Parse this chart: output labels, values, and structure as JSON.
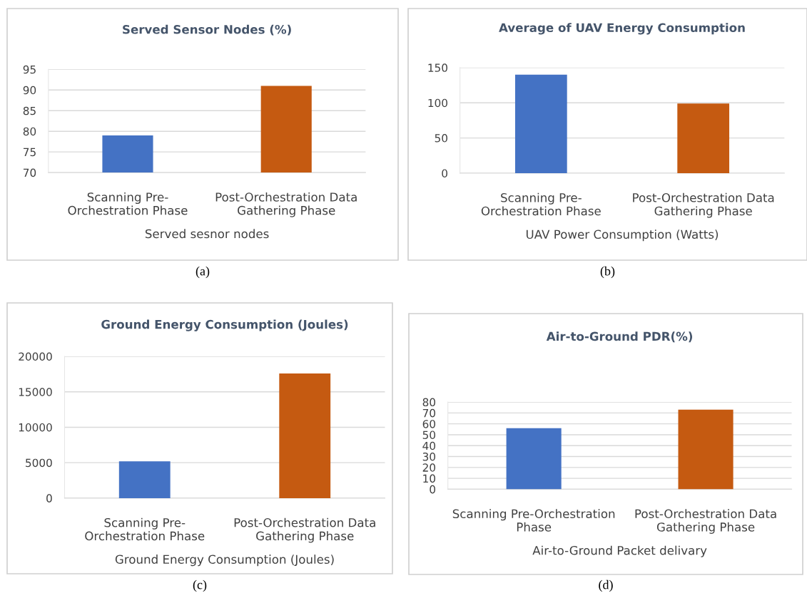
{
  "chart_data": [
    {
      "type": "bar",
      "title": "Served Sensor Nodes (%)",
      "xlabel": "Served sesnor nodes",
      "categories": [
        "Scanning Pre-\nOrchestration Phase",
        "Post-Orchestration Data\nGathering Phase"
      ],
      "values": [
        79,
        91
      ],
      "colors": [
        "#4472c4",
        "#c55a11"
      ],
      "ylim": [
        70,
        95
      ],
      "yticks": [
        70,
        75,
        80,
        85,
        90,
        95
      ],
      "grid": "y",
      "annotations": [
        "(a)"
      ]
    },
    {
      "type": "bar",
      "title": "Average of UAV Energy Consumption",
      "xlabel": "UAV Power Consumption (Watts)",
      "categories": [
        "Scanning Pre-\nOrchestration Phase",
        "Post-Orchestration Data\nGathering Phase"
      ],
      "values": [
        140,
        99
      ],
      "colors": [
        "#4472c4",
        "#c55a11"
      ],
      "ylim": [
        0,
        150
      ],
      "yticks": [
        0,
        50,
        100,
        150
      ],
      "grid": "y",
      "annotations": [
        "(b)"
      ]
    },
    {
      "type": "bar",
      "title": "Ground Energy Consumption (Joules)",
      "xlabel": "Ground Energy Consumption (Joules)",
      "categories": [
        "Scanning Pre-\nOrchestration Phase",
        "Post-Orchestration Data\nGathering Phase"
      ],
      "values": [
        5200,
        17600
      ],
      "colors": [
        "#4472c4",
        "#c55a11"
      ],
      "ylim": [
        0,
        20000
      ],
      "yticks": [
        0,
        5000,
        10000,
        15000,
        20000
      ],
      "grid": "y",
      "annotations": [
        "(c)"
      ]
    },
    {
      "type": "bar",
      "title": "Air-to-Ground PDR(%)",
      "xlabel": "Air-to-Ground Packet delivary",
      "categories": [
        "Scanning Pre-Orchestration\nPhase",
        "Post-Orchestration Data\nGathering Phase"
      ],
      "values": [
        56,
        73
      ],
      "colors": [
        "#4472c4",
        "#c55a11"
      ],
      "ylim": [
        0,
        80
      ],
      "yticks": [
        0,
        10,
        20,
        30,
        40,
        50,
        60,
        70,
        80
      ],
      "grid": "y",
      "annotations": [
        "(d)"
      ]
    }
  ]
}
